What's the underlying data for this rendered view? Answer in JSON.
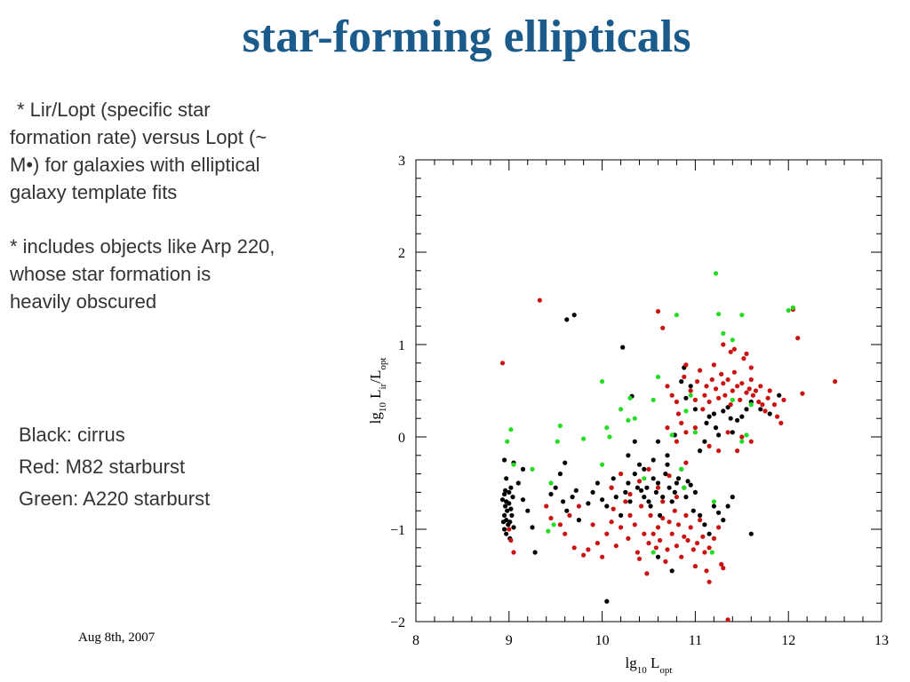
{
  "slide": {
    "title": "star-forming ellipticals",
    "bullet1": "* Lir/Lopt (specific star formation rate) versus Lopt (~ M•) for galaxies with elliptical galaxy template fits",
    "bullet2": "* includes objects like Arp 220, whose star formation is heavily obscured",
    "legend": [
      "Black: cirrus",
      "Red: M82 starburst",
      "Green: A220 starburst"
    ],
    "footer": "Aug 8th, 2007"
  },
  "colors": {
    "title": "#1a5b8c",
    "cirrus": "#000000",
    "m82": "#cc1111",
    "a220": "#22dd22"
  },
  "chart_data": {
    "type": "scatter",
    "xlim": [
      8,
      13
    ],
    "ylim": [
      -2,
      3
    ],
    "xticks": [
      "8",
      "9",
      "10",
      "11",
      "12",
      "13"
    ],
    "yticks": [
      "−2",
      "−1",
      "0",
      "1",
      "2",
      "3"
    ],
    "series": [
      {
        "name": "cirrus",
        "color": "#000000",
        "points": [
          [
            8.95,
            -0.25
          ],
          [
            8.97,
            -0.45
          ],
          [
            8.95,
            -0.62
          ],
          [
            8.97,
            -0.7
          ],
          [
            8.96,
            -0.75
          ],
          [
            8.98,
            -0.8
          ],
          [
            8.95,
            -0.85
          ],
          [
            8.97,
            -0.9
          ],
          [
            8.99,
            -0.95
          ],
          [
            8.95,
            -1.0
          ],
          [
            8.97,
            -1.05
          ],
          [
            9.0,
            -0.72
          ],
          [
            9.02,
            -0.78
          ],
          [
            9.03,
            -0.85
          ],
          [
            9.01,
            -0.92
          ],
          [
            9.04,
            -0.65
          ],
          [
            9.02,
            -0.55
          ],
          [
            9.05,
            -0.98
          ],
          [
            8.93,
            -0.68
          ],
          [
            8.94,
            -0.92
          ],
          [
            8.96,
            -0.58
          ],
          [
            9.0,
            -0.6
          ],
          [
            9.01,
            -1.1
          ],
          [
            9.1,
            -0.5
          ],
          [
            9.15,
            -0.68
          ],
          [
            9.2,
            -0.8
          ],
          [
            9.25,
            -0.98
          ],
          [
            9.28,
            -1.25
          ],
          [
            9.15,
            -0.35
          ],
          [
            9.05,
            -0.28
          ],
          [
            9.45,
            -0.62
          ],
          [
            9.5,
            -0.55
          ],
          [
            9.58,
            -0.7
          ],
          [
            9.62,
            -0.8
          ],
          [
            9.68,
            -0.65
          ],
          [
            9.72,
            -0.58
          ],
          [
            9.75,
            -0.9
          ],
          [
            9.55,
            -0.4
          ],
          [
            9.6,
            -0.28
          ],
          [
            9.62,
            1.27
          ],
          [
            9.7,
            1.32
          ],
          [
            9.85,
            -0.72
          ],
          [
            9.9,
            -0.6
          ],
          [
            9.95,
            -0.5
          ],
          [
            10.0,
            -0.68
          ],
          [
            10.05,
            -0.75
          ],
          [
            10.1,
            -0.55
          ],
          [
            10.12,
            -0.45
          ],
          [
            10.15,
            -0.65
          ],
          [
            10.2,
            -0.85
          ],
          [
            10.22,
            0.97
          ],
          [
            10.25,
            -0.6
          ],
          [
            10.28,
            -0.5
          ],
          [
            10.3,
            -0.7
          ],
          [
            10.32,
            0.44
          ],
          [
            10.35,
            -0.4
          ],
          [
            10.38,
            -0.55
          ],
          [
            10.4,
            -0.3
          ],
          [
            10.42,
            -0.58
          ],
          [
            10.45,
            -0.65
          ],
          [
            10.48,
            -0.55
          ],
          [
            10.5,
            -0.7
          ],
          [
            10.52,
            -0.75
          ],
          [
            10.55,
            -0.45
          ],
          [
            10.58,
            -0.6
          ],
          [
            10.6,
            -0.5
          ],
          [
            10.62,
            -0.85
          ],
          [
            10.65,
            -0.65
          ],
          [
            10.68,
            -0.4
          ],
          [
            10.7,
            -0.3
          ],
          [
            10.72,
            -0.55
          ],
          [
            10.75,
            -0.7
          ],
          [
            10.78,
            -0.6
          ],
          [
            10.8,
            -0.5
          ],
          [
            10.82,
            -0.45
          ],
          [
            10.85,
            -0.35
          ],
          [
            10.88,
            -0.55
          ],
          [
            10.9,
            -0.65
          ],
          [
            10.92,
            -0.48
          ],
          [
            10.95,
            -0.52
          ],
          [
            10.98,
            -0.8
          ],
          [
            11.0,
            -0.6
          ],
          [
            11.05,
            -0.85
          ],
          [
            11.1,
            -0.95
          ],
          [
            11.15,
            -1.05
          ],
          [
            11.2,
            -0.75
          ],
          [
            11.25,
            -0.82
          ],
          [
            11.3,
            -0.9
          ],
          [
            11.35,
            -0.75
          ],
          [
            11.4,
            -0.65
          ],
          [
            11.6,
            -1.05
          ],
          [
            10.05,
            -1.78
          ],
          [
            10.75,
            -1.45
          ],
          [
            10.6,
            -1.3
          ],
          [
            10.9,
            0.42
          ],
          [
            10.95,
            0.55
          ],
          [
            10.88,
            0.75
          ],
          [
            11.0,
            0.3
          ],
          [
            11.05,
            -0.15
          ],
          [
            11.1,
            -0.05
          ],
          [
            11.12,
            0.15
          ],
          [
            11.15,
            0.22
          ],
          [
            11.2,
            0.25
          ],
          [
            11.22,
            0.1
          ],
          [
            11.25,
            0.02
          ],
          [
            11.3,
            0.28
          ],
          [
            11.35,
            0.32
          ],
          [
            11.38,
            0.2
          ],
          [
            11.4,
            0.05
          ],
          [
            11.45,
            0.18
          ],
          [
            11.5,
            0.22
          ],
          [
            11.55,
            0.3
          ],
          [
            11.6,
            0.38
          ],
          [
            11.7,
            0.3
          ],
          [
            11.8,
            0.25
          ],
          [
            11.9,
            0.45
          ],
          [
            10.85,
            0.6
          ],
          [
            10.78,
            0.02
          ],
          [
            10.7,
            -0.2
          ],
          [
            10.6,
            -0.05
          ],
          [
            10.55,
            -0.25
          ],
          [
            10.45,
            -0.35
          ],
          [
            10.35,
            -0.05
          ],
          [
            10.28,
            -0.2
          ]
        ]
      },
      {
        "name": "M82 starburst",
        "color": "#cc1111",
        "points": [
          [
            8.93,
            0.8
          ],
          [
            9.33,
            1.48
          ],
          [
            10.6,
            1.36
          ],
          [
            10.65,
            1.18
          ],
          [
            12.05,
            1.38
          ],
          [
            12.1,
            1.07
          ],
          [
            12.5,
            0.6
          ],
          [
            12.15,
            0.47
          ],
          [
            11.35,
            -1.98
          ],
          [
            11.15,
            -1.57
          ],
          [
            10.7,
            0.55
          ],
          [
            10.75,
            0.45
          ],
          [
            10.8,
            0.38
          ],
          [
            10.82,
            0.25
          ],
          [
            10.85,
            0.15
          ],
          [
            10.88,
            0.65
          ],
          [
            10.9,
            0.78
          ],
          [
            10.95,
            0.5
          ],
          [
            11.0,
            0.4
          ],
          [
            11.02,
            0.6
          ],
          [
            11.05,
            0.72
          ],
          [
            11.08,
            0.3
          ],
          [
            11.1,
            0.45
          ],
          [
            11.12,
            0.55
          ],
          [
            11.15,
            0.38
          ],
          [
            11.18,
            0.62
          ],
          [
            11.2,
            0.78
          ],
          [
            11.22,
            0.52
          ],
          [
            11.25,
            0.42
          ],
          [
            11.28,
            0.68
          ],
          [
            11.3,
            0.58
          ],
          [
            11.32,
            0.45
          ],
          [
            11.35,
            0.62
          ],
          [
            11.38,
            0.35
          ],
          [
            11.4,
            0.5
          ],
          [
            11.42,
            0.7
          ],
          [
            11.45,
            0.55
          ],
          [
            11.48,
            0.4
          ],
          [
            11.5,
            0.58
          ],
          [
            11.52,
            0.85
          ],
          [
            11.55,
            0.48
          ],
          [
            11.58,
            0.52
          ],
          [
            11.6,
            0.62
          ],
          [
            11.62,
            0.45
          ],
          [
            11.65,
            0.5
          ],
          [
            11.68,
            0.38
          ],
          [
            11.7,
            0.55
          ],
          [
            11.72,
            0.35
          ],
          [
            11.75,
            0.28
          ],
          [
            11.78,
            0.42
          ],
          [
            11.8,
            0.5
          ],
          [
            11.85,
            0.35
          ],
          [
            11.88,
            0.22
          ],
          [
            11.92,
            0.15
          ],
          [
            11.95,
            0.4
          ],
          [
            11.42,
            0.95
          ],
          [
            11.55,
            0.9
          ],
          [
            11.6,
            0.75
          ],
          [
            11.3,
            1.0
          ],
          [
            11.38,
            0.92
          ],
          [
            10.7,
            0.1
          ],
          [
            10.8,
            -0.05
          ],
          [
            10.9,
            0.05
          ],
          [
            11.0,
            0.1
          ],
          [
            11.15,
            -0.1
          ],
          [
            11.25,
            -0.15
          ],
          [
            11.35,
            0.05
          ],
          [
            11.5,
            0.0
          ],
          [
            11.6,
            -0.05
          ],
          [
            11.45,
            -0.15
          ],
          [
            9.0,
            -1.0
          ],
          [
            9.02,
            -1.12
          ],
          [
            9.05,
            -1.25
          ],
          [
            9.4,
            -0.75
          ],
          [
            9.45,
            -0.88
          ],
          [
            9.55,
            -0.95
          ],
          [
            9.6,
            -1.05
          ],
          [
            9.65,
            -0.85
          ],
          [
            9.7,
            -1.2
          ],
          [
            9.75,
            -0.75
          ],
          [
            9.8,
            -1.28
          ],
          [
            9.85,
            -1.22
          ],
          [
            9.9,
            -0.95
          ],
          [
            9.95,
            -1.15
          ],
          [
            10.0,
            -1.3
          ],
          [
            10.05,
            -1.05
          ],
          [
            10.1,
            -0.92
          ],
          [
            10.12,
            -0.78
          ],
          [
            10.15,
            -1.18
          ],
          [
            10.2,
            -0.98
          ],
          [
            10.25,
            -0.7
          ],
          [
            10.28,
            -1.1
          ],
          [
            10.3,
            -0.85
          ],
          [
            10.35,
            -0.95
          ],
          [
            10.38,
            -1.25
          ],
          [
            10.4,
            -1.32
          ],
          [
            10.42,
            -0.75
          ],
          [
            10.45,
            -1.05
          ],
          [
            10.48,
            -1.48
          ],
          [
            10.5,
            -1.15
          ],
          [
            10.52,
            -0.85
          ],
          [
            10.55,
            -1.05
          ],
          [
            10.58,
            -1.2
          ],
          [
            10.6,
            -0.98
          ],
          [
            10.62,
            -1.12
          ],
          [
            10.65,
            -0.88
          ],
          [
            10.68,
            -1.35
          ],
          [
            10.7,
            -1.22
          ],
          [
            10.72,
            -0.92
          ],
          [
            10.75,
            -1.05
          ],
          [
            10.78,
            -0.8
          ],
          [
            10.8,
            -1.18
          ],
          [
            10.82,
            -0.95
          ],
          [
            10.85,
            -1.3
          ],
          [
            10.88,
            -1.08
          ],
          [
            10.9,
            -0.85
          ],
          [
            10.92,
            -1.12
          ],
          [
            10.95,
            -0.98
          ],
          [
            10.98,
            -1.22
          ],
          [
            11.0,
            -1.4
          ],
          [
            11.02,
            -1.15
          ],
          [
            11.05,
            -0.9
          ],
          [
            11.08,
            -1.08
          ],
          [
            11.1,
            -1.25
          ],
          [
            11.12,
            -1.45
          ],
          [
            11.15,
            -1.2
          ],
          [
            11.2,
            -1.1
          ],
          [
            11.25,
            -0.98
          ],
          [
            11.28,
            -1.38
          ],
          [
            11.3,
            -1.42
          ],
          [
            10.1,
            -0.55
          ],
          [
            10.2,
            -0.4
          ],
          [
            10.3,
            -0.62
          ],
          [
            10.4,
            -0.48
          ],
          [
            10.5,
            -0.35
          ],
          [
            10.6,
            -0.55
          ],
          [
            10.65,
            -0.7
          ],
          [
            10.72,
            -0.42
          ],
          [
            10.8,
            -0.65
          ],
          [
            10.9,
            -0.28
          ]
        ]
      },
      {
        "name": "A220 starburst",
        "color": "#22dd22",
        "points": [
          [
            11.22,
            1.77
          ],
          [
            10.8,
            1.32
          ],
          [
            11.25,
            1.33
          ],
          [
            11.5,
            1.32
          ],
          [
            12.0,
            1.37
          ],
          [
            12.05,
            1.4
          ],
          [
            11.3,
            1.12
          ],
          [
            11.4,
            1.05
          ],
          [
            10.6,
            0.65
          ],
          [
            10.55,
            0.4
          ],
          [
            10.3,
            0.42
          ],
          [
            10.28,
            0.18
          ],
          [
            10.2,
            0.3
          ],
          [
            10.35,
            0.2
          ],
          [
            10.0,
            0.6
          ],
          [
            10.05,
            0.1
          ],
          [
            10.08,
            0.0
          ],
          [
            9.55,
            0.12
          ],
          [
            9.52,
            -0.05
          ],
          [
            9.02,
            0.08
          ],
          [
            8.98,
            -0.05
          ],
          [
            9.05,
            -0.3
          ],
          [
            10.95,
            0.45
          ],
          [
            10.9,
            0.28
          ],
          [
            11.6,
            0.35
          ],
          [
            11.5,
            -0.05
          ],
          [
            11.55,
            0.02
          ],
          [
            11.0,
            0.05
          ],
          [
            9.25,
            -0.35
          ],
          [
            9.45,
            -0.5
          ],
          [
            9.48,
            -0.95
          ],
          [
            9.42,
            -1.02
          ],
          [
            10.0,
            -0.3
          ],
          [
            10.55,
            -1.25
          ],
          [
            10.85,
            -0.35
          ],
          [
            10.88,
            -0.55
          ],
          [
            11.2,
            -0.7
          ],
          [
            11.18,
            -1.25
          ],
          [
            11.4,
            0.4
          ],
          [
            10.75,
            0.02
          ],
          [
            9.8,
            -0.02
          ],
          [
            10.45,
            -0.45
          ]
        ]
      }
    ]
  }
}
